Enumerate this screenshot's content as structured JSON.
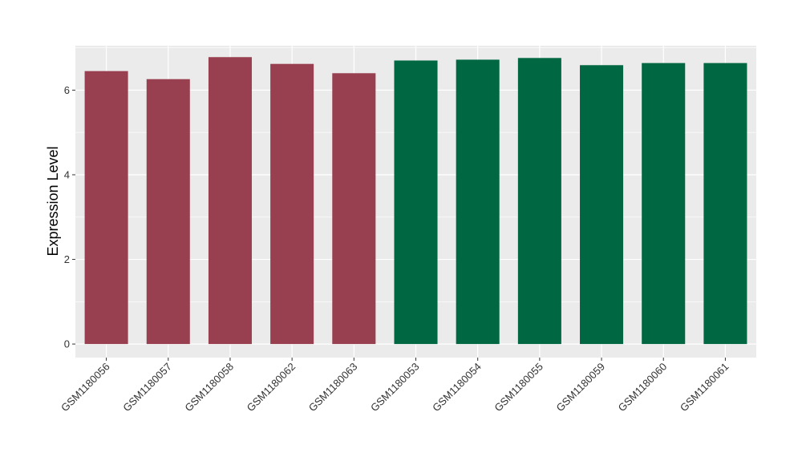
{
  "chart_data": {
    "type": "bar",
    "title": "",
    "xlabel": "",
    "ylabel": "Expression Level",
    "ylim": [
      -0.32,
      7.05
    ],
    "yticks": [
      0,
      2,
      4,
      6
    ],
    "grid": true,
    "legend": "none",
    "categories": [
      "GSM1180056",
      "GSM1180057",
      "GSM1180058",
      "GSM1180062",
      "GSM1180063",
      "GSM1180053",
      "GSM1180054",
      "GSM1180055",
      "GSM1180059",
      "GSM1180060",
      "GSM1180061"
    ],
    "values": [
      6.45,
      6.26,
      6.78,
      6.62,
      6.4,
      6.7,
      6.72,
      6.76,
      6.59,
      6.64,
      6.64
    ],
    "bar_colors": [
      "#98404f",
      "#98404f",
      "#98404f",
      "#98404f",
      "#98404f",
      "#006743",
      "#006743",
      "#006743",
      "#006743",
      "#006743",
      "#006743"
    ],
    "panel_background": "#ebebeb",
    "grid_color": "#ffffff"
  }
}
